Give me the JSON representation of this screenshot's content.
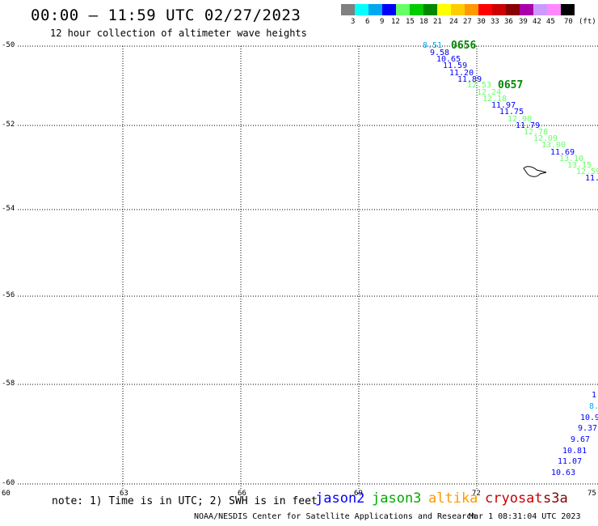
{
  "header": {
    "title": "00:00 – 11:59 UTC 02/27/2023",
    "subtitle": "12 hour collection of altimeter wave heights"
  },
  "legend": {
    "labels": [
      "3",
      "6",
      "9",
      "12",
      "15",
      "18",
      "21",
      "24",
      "27",
      "30",
      "33",
      "36",
      "39",
      "42",
      "45",
      "70",
      "(ft)"
    ],
    "colors": [
      "#808080",
      "#00ffff",
      "#00a8f0",
      "#0000ff",
      "#66ff66",
      "#00cc00",
      "#008800",
      "#ffff00",
      "#ffcc00",
      "#ff9900",
      "#ff0000",
      "#cc0000",
      "#880000",
      "#aa00aa",
      "#cc99ff",
      "#ff88ff",
      "#000000"
    ]
  },
  "map": {
    "y_labels": [
      "-50",
      "-52",
      "-54",
      "-56",
      "-58",
      "-60"
    ],
    "x_labels": [
      "60",
      "63",
      "66",
      "69",
      "72",
      "75"
    ]
  },
  "passes": [
    {
      "label": "0656",
      "color": "#008800"
    },
    {
      "label": "0657",
      "color": "#008800"
    }
  ],
  "observations": [
    {
      "value": "8.51",
      "color": "#00a8f0"
    },
    {
      "value": "9.58",
      "color": "#0000ff"
    },
    {
      "value": "10.65",
      "color": "#0000ff"
    },
    {
      "value": "11.59",
      "color": "#0000ff"
    },
    {
      "value": "11.20",
      "color": "#0000ff"
    },
    {
      "value": "11.89",
      "color": "#0000ff"
    },
    {
      "value": "12.53",
      "color": "#66ff66"
    },
    {
      "value": "12.24",
      "color": "#66ff66"
    },
    {
      "value": "12.18",
      "color": "#66ff66"
    },
    {
      "value": "11.97",
      "color": "#0000ff"
    },
    {
      "value": "11.75",
      "color": "#0000ff"
    },
    {
      "value": "12.90",
      "color": "#66ff66"
    },
    {
      "value": "11.79",
      "color": "#0000ff"
    },
    {
      "value": "12.78",
      "color": "#66ff66"
    },
    {
      "value": "12.09",
      "color": "#66ff66"
    },
    {
      "value": "13.00",
      "color": "#66ff66"
    },
    {
      "value": "11.69",
      "color": "#0000ff"
    },
    {
      "value": "13.10",
      "color": "#66ff66"
    },
    {
      "value": "13.15",
      "color": "#66ff66"
    },
    {
      "value": "12.59",
      "color": "#66ff66"
    },
    {
      "value": "11.",
      "color": "#0000ff"
    },
    {
      "value": "1",
      "color": "#0000ff"
    },
    {
      "value": "8.",
      "color": "#00a8f0"
    },
    {
      "value": "10.9",
      "color": "#0000ff"
    },
    {
      "value": "9.37",
      "color": "#0000ff"
    },
    {
      "value": "9.67",
      "color": "#0000ff"
    },
    {
      "value": "10.81",
      "color": "#0000ff"
    },
    {
      "value": "11.07",
      "color": "#0000ff"
    },
    {
      "value": "10.63",
      "color": "#0000ff"
    }
  ],
  "footer": {
    "note": "note: 1) Time is in UTC; 2) SWH is in feet",
    "satellites": [
      {
        "name": "jason2",
        "color": "#0000ff"
      },
      {
        "name": "jason3",
        "color": "#00aa00"
      },
      {
        "name": "altika",
        "color": "#ff9900"
      },
      {
        "name": "cryosat",
        "color": "#cc0000"
      },
      {
        "name": "s3a",
        "color": "#880000"
      }
    ],
    "credit": "NOAA/NESDIS Center for Satellite Applications and Research",
    "timestamp": "Mar  1 08:31:04 UTC 2023"
  }
}
